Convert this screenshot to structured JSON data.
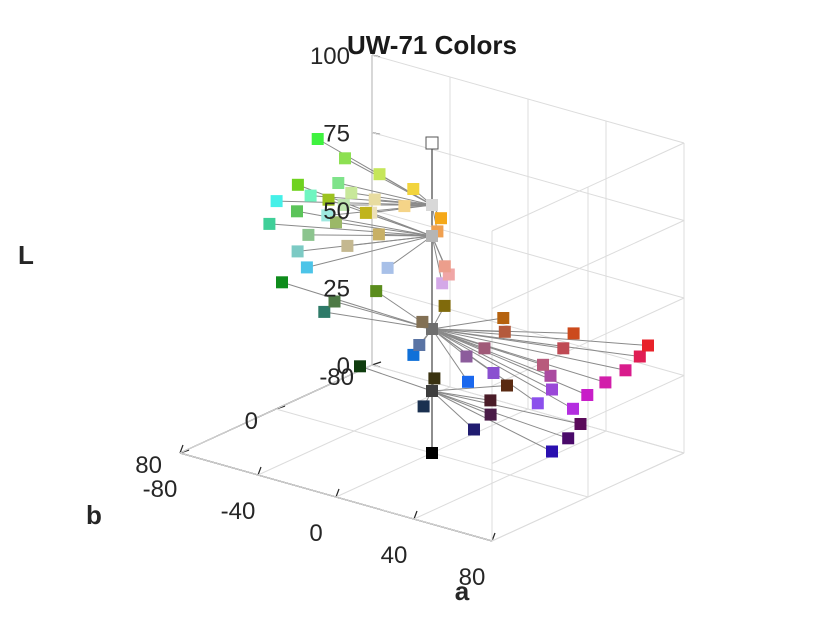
{
  "chart_data": {
    "type": "scatter",
    "title": "UW-71 Colors",
    "xlabel": "a",
    "ylabel": "b",
    "zlabel": "L",
    "xlim": [
      -80,
      80
    ],
    "ylim": [
      -80,
      80
    ],
    "zlim": [
      0,
      100
    ],
    "xticks": [
      "-80",
      "-40",
      "0",
      "40",
      "80"
    ],
    "yticks": [
      "80",
      "0",
      "-80"
    ],
    "zticks": [
      "100",
      "75",
      "50",
      "25",
      "0"
    ],
    "grid": true,
    "view": "3d",
    "hub_L": [
      0,
      20,
      40,
      70,
      80,
      100
    ],
    "points": [
      {
        "a": 0,
        "b": 0,
        "L": 100,
        "color": "#ffffff"
      },
      {
        "a": 0,
        "b": 0,
        "L": 80,
        "color": "#d8d8d8"
      },
      {
        "a": 0,
        "b": 0,
        "L": 70,
        "color": "#b5b5b5"
      },
      {
        "a": 0,
        "b": 0,
        "L": 40,
        "color": "#6f6f6f"
      },
      {
        "a": 0,
        "b": 0,
        "L": 20,
        "color": "#3d3d3d"
      },
      {
        "a": 0,
        "b": 0,
        "L": 0,
        "color": "#000000"
      },
      {
        "a": -82,
        "b": -38,
        "L": 80,
        "color": "#3ff23f"
      },
      {
        "a": -60,
        "b": -25,
        "L": 80,
        "color": "#8de052"
      },
      {
        "a": -38,
        "b": -18,
        "L": 80,
        "color": "#c5e65a"
      },
      {
        "a": -17,
        "b": -12,
        "L": 80,
        "color": "#f2d43c"
      },
      {
        "a": -45,
        "b": 5,
        "L": 80,
        "color": "#7fe38a"
      },
      {
        "a": -34,
        "b": 12,
        "L": 80,
        "color": "#c8e89a"
      },
      {
        "a": -22,
        "b": 12,
        "L": 80,
        "color": "#e8dca0"
      },
      {
        "a": -8,
        "b": 10,
        "L": 80,
        "color": "#f5d488"
      },
      {
        "a": -45,
        "b": 28,
        "L": 80,
        "color": "#6ff5c0"
      },
      {
        "a": -28,
        "b": 28,
        "L": 80,
        "color": "#bfe6b0"
      },
      {
        "a": -14,
        "b": 28,
        "L": 80,
        "color": "#ece0b8"
      },
      {
        "a": 12,
        "b": 12,
        "L": 80,
        "color": "#f5a818"
      },
      {
        "a": -52,
        "b": 45,
        "L": 80,
        "color": "#45f0e8"
      },
      {
        "a": -26,
        "b": 45,
        "L": 80,
        "color": "#9ee8e0"
      },
      {
        "a": 20,
        "b": 28,
        "L": 80,
        "color": "#f0a050"
      },
      {
        "a": -78,
        "b": -15,
        "L": 70,
        "color": "#6fd21f"
      },
      {
        "a": -58,
        "b": -8,
        "L": 70,
        "color": "#9cc21f"
      },
      {
        "a": -37,
        "b": -5,
        "L": 70,
        "color": "#c0b41c"
      },
      {
        "a": -60,
        "b": 15,
        "L": 70,
        "color": "#5cc45a"
      },
      {
        "a": -40,
        "b": 15,
        "L": 70,
        "color": "#9bb868"
      },
      {
        "a": -18,
        "b": 15,
        "L": 70,
        "color": "#c8b066"
      },
      {
        "a": -60,
        "b": 38,
        "L": 70,
        "color": "#3fcf98"
      },
      {
        "a": -40,
        "b": 38,
        "L": 70,
        "color": "#8cc48e"
      },
      {
        "a": -20,
        "b": 38,
        "L": 70,
        "color": "#c4b890"
      },
      {
        "a": 25,
        "b": 30,
        "L": 70,
        "color": "#ec9e8c"
      },
      {
        "a": 32,
        "b": 38,
        "L": 70,
        "color": "#f0a6a6"
      },
      {
        "a": -32,
        "b": 60,
        "L": 70,
        "color": "#7ccac4"
      },
      {
        "a": -18,
        "b": 75,
        "L": 70,
        "color": "#4cc4e8"
      },
      {
        "a": 8,
        "b": 50,
        "L": 70,
        "color": "#a8c0e8"
      },
      {
        "a": 36,
        "b": 50,
        "L": 70,
        "color": "#d4a8e8"
      },
      {
        "a": -80,
        "b": -5,
        "L": 40,
        "color": "#0f8c1c"
      },
      {
        "a": -44,
        "b": -25,
        "L": 40,
        "color": "#5a8c1c"
      },
      {
        "a": -12,
        "b": -30,
        "L": 40,
        "color": "#806a0c"
      },
      {
        "a": -50,
        "b": 0,
        "L": 40,
        "color": "#4e7a46"
      },
      {
        "a": -8,
        "b": -5,
        "L": 40,
        "color": "#827054"
      },
      {
        "a": -46,
        "b": 15,
        "L": 40,
        "color": "#2e7a68"
      },
      {
        "a": 15,
        "b": -35,
        "L": 40,
        "color": "#b5620e"
      },
      {
        "a": 25,
        "b": -20,
        "L": 40,
        "color": "#b45a3c"
      },
      {
        "a": 48,
        "b": -40,
        "L": 40,
        "color": "#cc4a1c"
      },
      {
        "a": 55,
        "b": -20,
        "L": 40,
        "color": "#bf4a54"
      },
      {
        "a": 80,
        "b": -50,
        "L": 40,
        "color": "#e8222a"
      },
      {
        "a": 85,
        "b": -35,
        "L": 40,
        "color": "#e01e54"
      },
      {
        "a": 90,
        "b": -15,
        "L": 40,
        "color": "#d91c8c"
      },
      {
        "a": 92,
        "b": 5,
        "L": 40,
        "color": "#d21eaa"
      },
      {
        "a": 95,
        "b": 25,
        "L": 40,
        "color": "#c81ec8"
      },
      {
        "a": 100,
        "b": 45,
        "L": 40,
        "color": "#b42ee0"
      },
      {
        "a": 30,
        "b": 5,
        "L": 40,
        "color": "#a05a78"
      },
      {
        "a": 60,
        "b": 5,
        "L": 40,
        "color": "#b85a7c"
      },
      {
        "a": 70,
        "b": 15,
        "L": 40,
        "color": "#aa4aa0"
      },
      {
        "a": 30,
        "b": 20,
        "L": 40,
        "color": "#8c5c9c"
      },
      {
        "a": 50,
        "b": 30,
        "L": 40,
        "color": "#8a50d0"
      },
      {
        "a": 80,
        "b": 30,
        "L": 40,
        "color": "#9a48d8"
      },
      {
        "a": 85,
        "b": 50,
        "L": 40,
        "color": "#8c50ec"
      },
      {
        "a": 7,
        "b": 22,
        "L": 40,
        "color": "#5a74a4"
      },
      {
        "a": 12,
        "b": 35,
        "L": 40,
        "color": "#1070d8"
      },
      {
        "a": 48,
        "b": 48,
        "L": 40,
        "color": "#1a68ee"
      },
      {
        "a": -40,
        "b": -5,
        "L": 20,
        "color": "#0f3c0e"
      },
      {
        "a": -8,
        "b": -15,
        "L": 20,
        "color": "#3a3210"
      },
      {
        "a": 20,
        "b": -30,
        "L": 20,
        "color": "#5a2a12"
      },
      {
        "a": 25,
        "b": -8,
        "L": 20,
        "color": "#4a1c28"
      },
      {
        "a": 35,
        "b": 8,
        "L": 20,
        "color": "#4a1c48"
      },
      {
        "a": 70,
        "b": -10,
        "L": 20,
        "color": "#5a0a5a"
      },
      {
        "a": 76,
        "b": 10,
        "L": 20,
        "color": "#4a0a6a"
      },
      {
        "a": 40,
        "b": 30,
        "L": 20,
        "color": "#201c70"
      },
      {
        "a": 80,
        "b": 30,
        "L": 20,
        "color": "#2a10b0"
      },
      {
        "a": 8,
        "b": 20,
        "L": 20,
        "color": "#1a3050"
      }
    ]
  }
}
